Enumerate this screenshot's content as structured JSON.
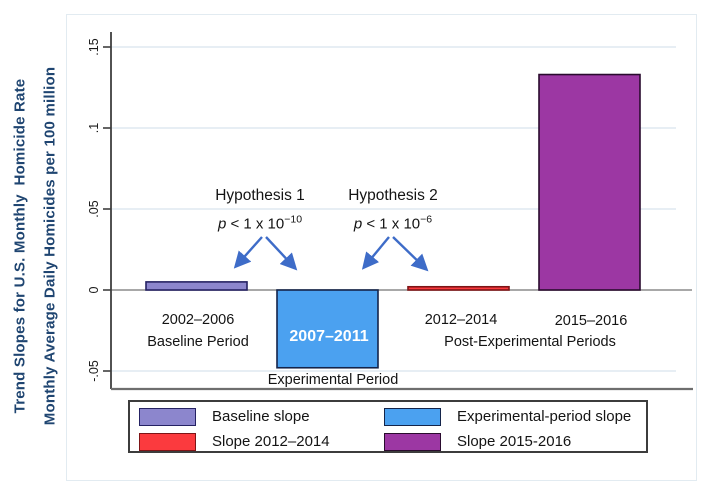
{
  "figure": {
    "y_axis_title_line1": "Trend Slopes for U.S. Monthly  Homicide Rate",
    "y_axis_title_line2": "Monthly Average Daily Homicides per 100 million"
  },
  "annotations": {
    "h1": {
      "title": "Hypothesis 1",
      "p_var": "p",
      "p_rest": " < 1 x 10",
      "p_exp": "−10"
    },
    "h2": {
      "title": "Hypothesis 2",
      "p_var": "p",
      "p_rest": " < 1 x 10",
      "p_exp": "−6"
    }
  },
  "category_labels": {
    "baseline_line1": "2002–2006",
    "baseline_line2": "Baseline Period",
    "experimental_inner": "2007–2011",
    "experimental_below": "Experimental Period",
    "post_period_1": "2012–2014",
    "post_period_2": "2015–2016",
    "post_group": "Post-Experimental Periods"
  },
  "legend": {
    "items": [
      {
        "label": "Baseline slope",
        "color": "#8c86cd",
        "border": "#252263"
      },
      {
        "label": "Experimental-period slope",
        "color": "#4ba1f0",
        "border": "#14244a"
      },
      {
        "label": "Slope 2012–2014",
        "color": "#fb3a3e",
        "border": "#7e1416"
      },
      {
        "label": "Slope 2015-2016",
        "color": "#9c37a3",
        "border": "#2a0b2e"
      }
    ]
  },
  "chart_data": {
    "type": "bar",
    "title": "Trend Slopes for U.S. Monthly Homicide Rate",
    "ylabel": "Monthly Average Daily Homicides per 100 million",
    "categories": [
      "2002–2006 Baseline Period",
      "2007–2011 Experimental Period",
      "2012–2014",
      "2015–2016"
    ],
    "values": [
      0.005,
      -0.048,
      0.002,
      0.133
    ],
    "bar_colors": [
      "#8c86cd",
      "#4ba1f0",
      "#fb3a3e",
      "#9c37a3"
    ],
    "bar_names": [
      "bar-baseline-2002-2006",
      "bar-experimental-2007-2011",
      "bar-post-2012-2014",
      "bar-post-2015-2016"
    ],
    "ylim": [
      -0.05,
      0.15
    ],
    "yticks": [
      {
        "value": 0.15,
        "label": ".15"
      },
      {
        "value": 0.1,
        "label": ".1"
      },
      {
        "value": 0.05,
        "label": ".05"
      },
      {
        "value": 0.0,
        "label": "0"
      },
      {
        "value": -0.05,
        "label": "-.05"
      }
    ],
    "grid": true,
    "legend_position": "bottom",
    "annotation_arrow_color": "#3e6cc8",
    "colors": {
      "grid_line": "#dfe9f0",
      "zero_line": "#8c8c8c",
      "axis_line": "#3f3f3f",
      "x_axis_line": "#6e6e6e"
    }
  }
}
